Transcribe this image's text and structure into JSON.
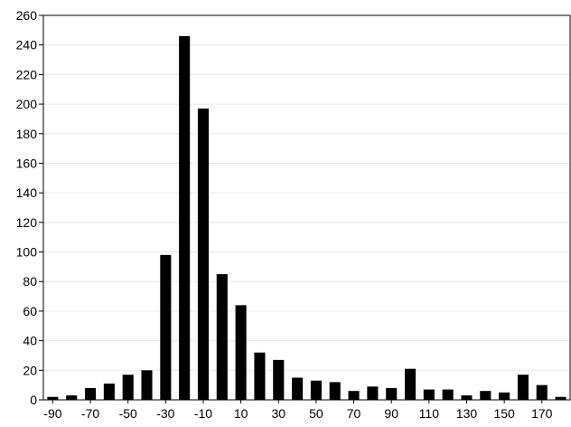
{
  "chart_data": {
    "type": "bar",
    "title": "",
    "xlabel": "",
    "ylabel": "",
    "ylim": [
      0,
      260
    ],
    "yticks": [
      0,
      20,
      40,
      60,
      80,
      100,
      120,
      140,
      160,
      180,
      200,
      220,
      240,
      260
    ],
    "xlim": [
      -95,
      185
    ],
    "xtick_labels": [
      "-90",
      "-70",
      "-50",
      "-30",
      "-10",
      "10",
      "30",
      "50",
      "70",
      "90",
      "110",
      "130",
      "150",
      "170"
    ],
    "grid": "horizontal",
    "bar_color": "#000000",
    "grid_color": "#e6e6e6",
    "x": [
      -90,
      -80,
      -70,
      -60,
      -50,
      -40,
      -30,
      -20,
      -10,
      0,
      10,
      20,
      30,
      40,
      50,
      60,
      70,
      80,
      90,
      100,
      110,
      120,
      130,
      140,
      150,
      160,
      170,
      180
    ],
    "values": [
      2,
      3,
      8,
      11,
      17,
      20,
      98,
      246,
      197,
      85,
      64,
      32,
      27,
      15,
      13,
      12,
      6,
      9,
      8,
      21,
      7,
      7,
      3,
      6,
      5,
      17,
      10,
      2
    ]
  }
}
